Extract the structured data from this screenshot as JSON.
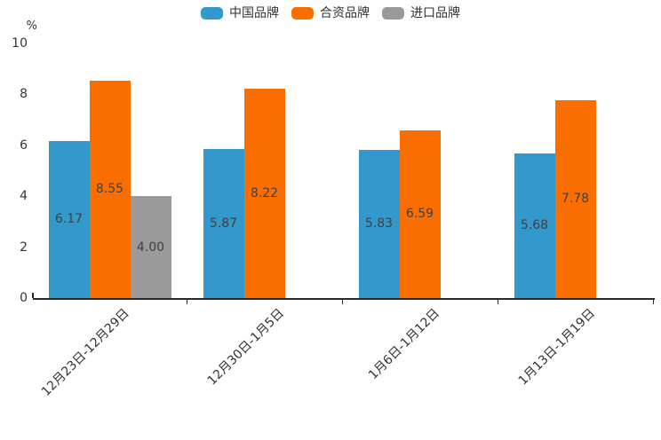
{
  "chart_data": {
    "type": "bar",
    "title": "",
    "ylabel": "%",
    "categories": [
      "12月23日-12月29日",
      "12月30日-1月5日",
      "1月6日-1月12日",
      "1月13日-1月19日"
    ],
    "series": [
      {
        "name": "中国品牌",
        "color": "#3398CB",
        "values": [
          6.17,
          5.87,
          5.83,
          5.68
        ]
      },
      {
        "name": "合资品牌",
        "color": "#FA6E00",
        "values": [
          8.55,
          8.22,
          6.59,
          7.78
        ]
      },
      {
        "name": "进口品牌",
        "color": "#9A9A9A",
        "values": [
          4.0,
          null,
          null,
          null
        ]
      }
    ],
    "value_label_decimals": 2,
    "yticks": [
      0,
      2,
      4,
      6,
      8,
      10
    ],
    "ylim": [
      0,
      10
    ],
    "grid": false,
    "legend_position": "top",
    "x_labels_rotation_deg": 45,
    "colors": {
      "axis": "#2a2a2a",
      "tick_label": "#333333",
      "value_label": "#404040",
      "background": "#ffffff"
    }
  }
}
